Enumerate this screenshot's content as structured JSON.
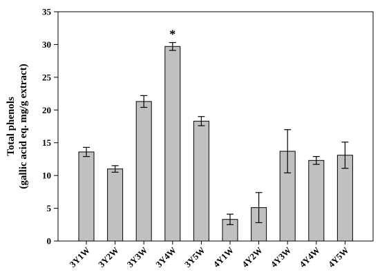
{
  "chart_data": {
    "type": "bar",
    "ylabel": [
      "Total phenols",
      "(gallic acid eq. mg/g extract)"
    ],
    "categories": [
      "3Y1W",
      "3Y2W",
      "3Y3W",
      "3Y4W",
      "3Y5W",
      "4Y1W",
      "4Y2W",
      "4Y3W",
      "4Y4W",
      "4Y5W"
    ],
    "values": [
      13.6,
      11.0,
      21.3,
      29.7,
      18.3,
      3.3,
      5.1,
      13.7,
      12.3,
      13.1
    ],
    "errors": [
      0.7,
      0.5,
      0.9,
      0.6,
      0.7,
      0.8,
      2.3,
      3.3,
      0.6,
      2.0
    ],
    "color": "#c0c0c0",
    "annotations": [
      {
        "text": "*",
        "category": "3Y4W"
      }
    ],
    "ylim": [
      0,
      35
    ],
    "yticks": [
      0,
      5,
      10,
      15,
      20,
      25,
      30,
      35
    ]
  }
}
